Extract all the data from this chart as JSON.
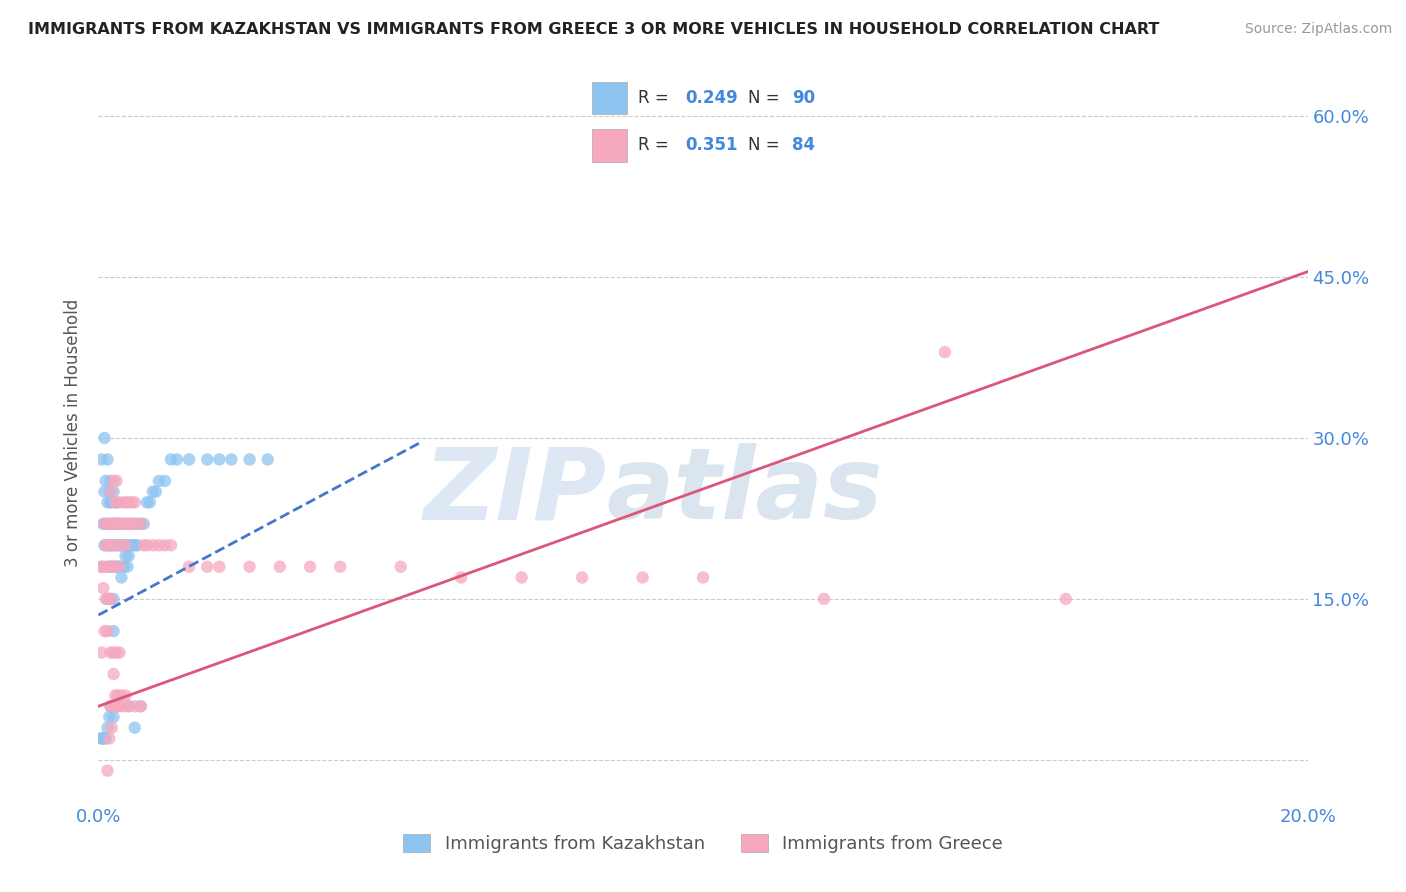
{
  "title": "IMMIGRANTS FROM KAZAKHSTAN VS IMMIGRANTS FROM GREECE 3 OR MORE VEHICLES IN HOUSEHOLD CORRELATION CHART",
  "source": "Source: ZipAtlas.com",
  "ylabel": "3 or more Vehicles in Household",
  "xlabel_kaz": "Immigrants from Kazakhstan",
  "xlabel_gre": "Immigrants from Greece",
  "watermark": "ZIPatlas",
  "legend_kaz": {
    "R": 0.249,
    "N": 90
  },
  "legend_gre": {
    "R": 0.351,
    "N": 84
  },
  "xmin": 0.0,
  "xmax": 0.2,
  "ymin": -0.04,
  "ymax": 0.65,
  "yticks": [
    0.0,
    0.15,
    0.3,
    0.45,
    0.6
  ],
  "ytick_labels": [
    "",
    "15.0%",
    "30.0%",
    "45.0%",
    "60.0%"
  ],
  "xticks": [
    0.0,
    0.05,
    0.1,
    0.15,
    0.2
  ],
  "xtick_labels": [
    "0.0%",
    "",
    "",
    "",
    "20.0%"
  ],
  "color_kaz": "#8ec4f0",
  "color_gre": "#f5a8be",
  "trend_kaz_color": "#4477cc",
  "trend_gre_color": "#dd5577",
  "background_color": "#ffffff",
  "grid_color": "#cccccc",
  "axis_label_color": "#4488dd",
  "title_color": "#222222",
  "kaz_trend_x0": 0.0,
  "kaz_trend_y0": 0.135,
  "kaz_trend_x1": 0.053,
  "kaz_trend_y1": 0.295,
  "gre_trend_x0": 0.0,
  "gre_trend_y0": 0.05,
  "gre_trend_x1": 0.2,
  "gre_trend_y1": 0.455,
  "kaz_x": [
    0.0005,
    0.0005,
    0.0008,
    0.001,
    0.001,
    0.001,
    0.0012,
    0.0012,
    0.0015,
    0.0015,
    0.0015,
    0.0015,
    0.0018,
    0.0018,
    0.0018,
    0.002,
    0.002,
    0.002,
    0.002,
    0.002,
    0.002,
    0.0022,
    0.0022,
    0.0025,
    0.0025,
    0.0025,
    0.0025,
    0.0025,
    0.0025,
    0.0028,
    0.0028,
    0.003,
    0.003,
    0.003,
    0.003,
    0.0032,
    0.0032,
    0.0035,
    0.0035,
    0.0035,
    0.0038,
    0.0038,
    0.004,
    0.004,
    0.004,
    0.0042,
    0.0042,
    0.0045,
    0.0045,
    0.0048,
    0.0048,
    0.005,
    0.005,
    0.0052,
    0.0055,
    0.0055,
    0.0058,
    0.006,
    0.0062,
    0.0065,
    0.0065,
    0.007,
    0.0075,
    0.008,
    0.0085,
    0.009,
    0.0095,
    0.01,
    0.011,
    0.012,
    0.013,
    0.015,
    0.018,
    0.02,
    0.022,
    0.025,
    0.028,
    0.005,
    0.007,
    0.006,
    0.003,
    0.0025,
    0.002,
    0.0018,
    0.0015,
    0.0012,
    0.001,
    0.0008,
    0.0006,
    0.0004
  ],
  "kaz_y": [
    0.28,
    0.18,
    0.22,
    0.3,
    0.25,
    0.2,
    0.26,
    0.22,
    0.28,
    0.24,
    0.2,
    0.15,
    0.25,
    0.22,
    0.18,
    0.26,
    0.24,
    0.22,
    0.2,
    0.18,
    0.15,
    0.24,
    0.2,
    0.25,
    0.22,
    0.2,
    0.18,
    0.15,
    0.12,
    0.22,
    0.18,
    0.24,
    0.22,
    0.2,
    0.18,
    0.22,
    0.18,
    0.22,
    0.2,
    0.18,
    0.2,
    0.17,
    0.22,
    0.2,
    0.18,
    0.2,
    0.18,
    0.22,
    0.19,
    0.2,
    0.18,
    0.22,
    0.19,
    0.2,
    0.22,
    0.2,
    0.2,
    0.22,
    0.2,
    0.22,
    0.2,
    0.22,
    0.22,
    0.24,
    0.24,
    0.25,
    0.25,
    0.26,
    0.26,
    0.28,
    0.28,
    0.28,
    0.28,
    0.28,
    0.28,
    0.28,
    0.28,
    0.05,
    0.05,
    0.03,
    0.05,
    0.04,
    0.05,
    0.04,
    0.03,
    0.02,
    0.02,
    0.02,
    0.02,
    0.02
  ],
  "gre_x": [
    0.0005,
    0.0005,
    0.0008,
    0.001,
    0.001,
    0.001,
    0.0012,
    0.0012,
    0.0015,
    0.0015,
    0.0015,
    0.0018,
    0.0018,
    0.002,
    0.002,
    0.002,
    0.0022,
    0.0022,
    0.0025,
    0.0025,
    0.0025,
    0.0028,
    0.0028,
    0.003,
    0.003,
    0.0032,
    0.0035,
    0.0035,
    0.0038,
    0.004,
    0.004,
    0.0042,
    0.0045,
    0.0045,
    0.0048,
    0.005,
    0.0052,
    0.0055,
    0.0058,
    0.006,
    0.0065,
    0.007,
    0.0075,
    0.008,
    0.009,
    0.01,
    0.011,
    0.012,
    0.015,
    0.018,
    0.02,
    0.025,
    0.03,
    0.035,
    0.04,
    0.05,
    0.06,
    0.07,
    0.08,
    0.09,
    0.1,
    0.12,
    0.14,
    0.16,
    0.0015,
    0.0018,
    0.002,
    0.0022,
    0.0025,
    0.0025,
    0.0028,
    0.003,
    0.0032,
    0.0035,
    0.0038,
    0.004,
    0.0045,
    0.005,
    0.006,
    0.007,
    0.002,
    0.0025,
    0.003,
    0.0035
  ],
  "gre_y": [
    0.18,
    0.1,
    0.16,
    0.22,
    0.18,
    0.12,
    0.2,
    0.15,
    0.22,
    0.18,
    0.12,
    0.2,
    0.15,
    0.25,
    0.2,
    0.15,
    0.22,
    0.18,
    0.26,
    0.22,
    0.18,
    0.24,
    0.2,
    0.26,
    0.22,
    0.24,
    0.22,
    0.18,
    0.22,
    0.24,
    0.2,
    0.22,
    0.24,
    0.2,
    0.22,
    0.24,
    0.22,
    0.24,
    0.22,
    0.24,
    0.22,
    0.22,
    0.2,
    0.2,
    0.2,
    0.2,
    0.2,
    0.2,
    0.18,
    0.18,
    0.18,
    0.18,
    0.18,
    0.18,
    0.18,
    0.18,
    0.17,
    0.17,
    0.17,
    0.17,
    0.17,
    0.15,
    0.38,
    0.15,
    -0.01,
    0.02,
    0.05,
    0.03,
    0.08,
    0.05,
    0.06,
    0.05,
    0.06,
    0.05,
    0.06,
    0.05,
    0.06,
    0.05,
    0.05,
    0.05,
    0.1,
    0.1,
    0.1,
    0.1
  ]
}
